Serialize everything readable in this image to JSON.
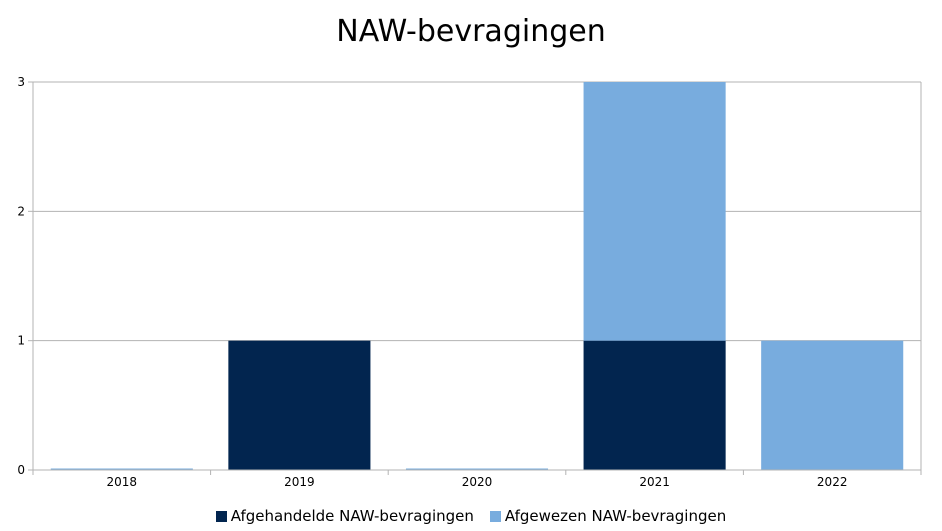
{
  "chart_data": {
    "type": "bar",
    "stacked": true,
    "title": "NAW-bevragingen",
    "categories": [
      "2018",
      "2019",
      "2020",
      "2021",
      "2022"
    ],
    "series": [
      {
        "name": "Afgehandelde NAW-bevragingen",
        "color": "#02254F",
        "values": [
          0,
          1,
          0,
          1,
          0
        ]
      },
      {
        "name": "Afgewezen NAW-bevragingen",
        "color": "#78ACDE",
        "values": [
          0,
          0,
          0,
          2,
          1
        ]
      }
    ],
    "ylim": [
      0,
      3
    ],
    "yticks": [
      "0",
      "1",
      "2",
      "3"
    ],
    "grid": true,
    "legend_position": "bottom"
  }
}
